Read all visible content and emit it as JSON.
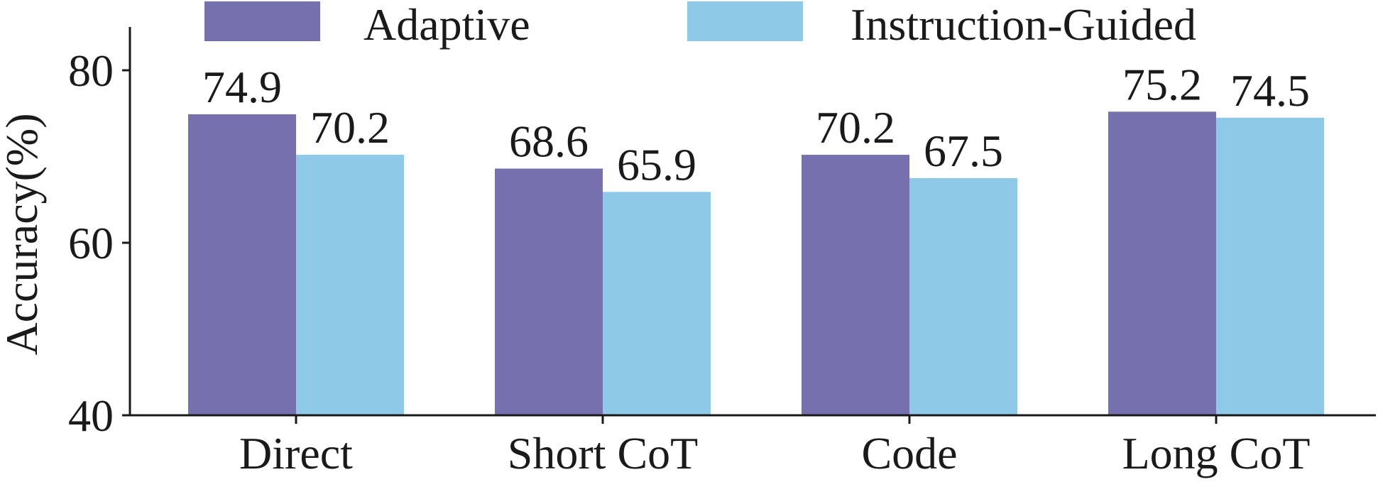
{
  "chart_data": {
    "type": "bar",
    "categories": [
      "Direct",
      "Short CoT",
      "Code",
      "Long CoT"
    ],
    "series": [
      {
        "name": "Adaptive",
        "values": [
          74.9,
          68.6,
          70.2,
          75.2
        ],
        "color": "#7570ae"
      },
      {
        "name": "Instruction-Guided",
        "values": [
          70.2,
          65.9,
          67.5,
          74.5
        ],
        "color": "#8ecae8"
      }
    ],
    "data_labels": [
      [
        "74.9",
        "68.6",
        "70.2",
        "75.2"
      ],
      [
        "70.2",
        "65.9",
        "67.5",
        "74.5"
      ]
    ],
    "ylabel": "Accuracy(%)",
    "xlabel": "",
    "ylim": [
      40,
      85
    ],
    "yticks": [
      40,
      60,
      80
    ],
    "grid": false,
    "legend_position": "top"
  }
}
